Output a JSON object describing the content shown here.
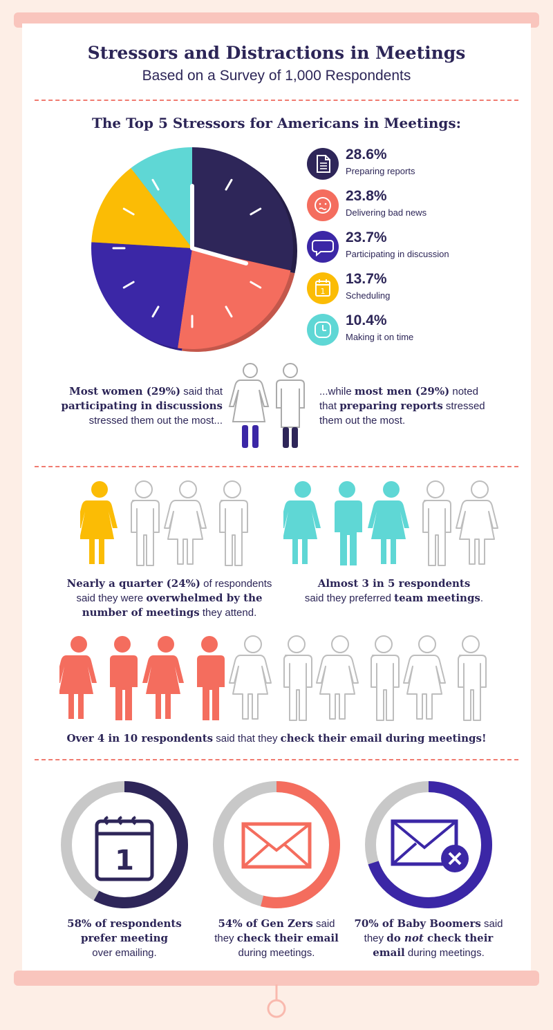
{
  "header": {
    "title": "Stressors and Distractions in Meetings",
    "subtitle": "Based on a Survey of 1,000 Respondents"
  },
  "stressors": {
    "section_title": "The Top 5 Stressors for Americans in Meetings:",
    "items": [
      {
        "pct": "28.6%",
        "label": "Preparing reports",
        "icon": "document-icon",
        "color": "#2e2659"
      },
      {
        "pct": "23.8%",
        "label": "Delivering bad news",
        "icon": "worried-face-icon",
        "color": "#f46d5e"
      },
      {
        "pct": "23.7%",
        "label": "Participating in discussion",
        "icon": "speech-bubble-icon",
        "color": "#3b27a6"
      },
      {
        "pct": "13.7%",
        "label": "Scheduling",
        "icon": "calendar-icon",
        "color": "#fbbc05"
      },
      {
        "pct": "10.4%",
        "label": "Making it on time",
        "icon": "clock-icon",
        "color": "#5fd7d5"
      }
    ]
  },
  "chart_data": {
    "type": "pie",
    "title": "The Top 5 Stressors for Americans in Meetings:",
    "categories": [
      "Preparing reports",
      "Delivering bad news",
      "Participating in discussion",
      "Scheduling",
      "Making it on time"
    ],
    "values": [
      28.6,
      23.8,
      23.7,
      13.7,
      10.4
    ],
    "colors": [
      "#2e2659",
      "#f46d5e",
      "#3b27a6",
      "#fbbc05",
      "#5fd7d5"
    ]
  },
  "gender": {
    "women_pre": "Most women (29%)",
    "women_mid": " said that",
    "women_bold": "participating in discussions",
    "women_post": "stressed them out the most...",
    "men_pre": "...while ",
    "men_bold1": "most men (29%)",
    "men_mid": " noted",
    "men_mid2": "that ",
    "men_bold2": "preparing reports",
    "men_post": " stressed",
    "men_post2": "them out the most."
  },
  "overwhelmed": {
    "filled": 1,
    "total": 4,
    "color": "#fbbc05",
    "l1_bold": "Nearly a quarter (24%)",
    "l1_rest": " of respondents",
    "l2_pre": "said they were ",
    "l2_bold": "overwhelmed by the",
    "l3_bold": "number of meetings",
    "l3_rest": " they attend."
  },
  "team": {
    "filled": 3,
    "total": 5,
    "color": "#5fd7d5",
    "l1_bold": "Almost 3 in 5 respondents",
    "l2_pre": "said they preferred ",
    "l2_bold": "team meetings",
    "l2_post": "."
  },
  "email": {
    "filled": 4,
    "total": 10,
    "color": "#f46d5e",
    "bold1": "Over 4 in 10 respondents",
    "mid": " said that they ",
    "bold2": "check their email during meetings!"
  },
  "donuts": [
    {
      "value": 58,
      "color": "#2e2659",
      "icon": "calendar-icon",
      "calendar_day": "1",
      "l1_bold": "58% of respondents",
      "l2_bold": "prefer meeting",
      "l3": "over emailing."
    },
    {
      "value": 54,
      "color": "#f46d5e",
      "icon": "envelope-icon",
      "l1_bold": "54% of Gen Zers",
      "l1_rest": " said",
      "l2_pre": "they ",
      "l2_bold": "check their email",
      "l3": "during meetings."
    },
    {
      "value": 70,
      "color": "#3b27a6",
      "icon": "envelope-x-icon",
      "l1_bold": "70% of Baby Boomers",
      "l1_rest": " said",
      "l2_pre": "they ",
      "l2_bold": "do ",
      "l2_italic": "not",
      "l2_bold2": " check their",
      "l3_bold": "email",
      "l3_rest": " during meetings."
    }
  ]
}
